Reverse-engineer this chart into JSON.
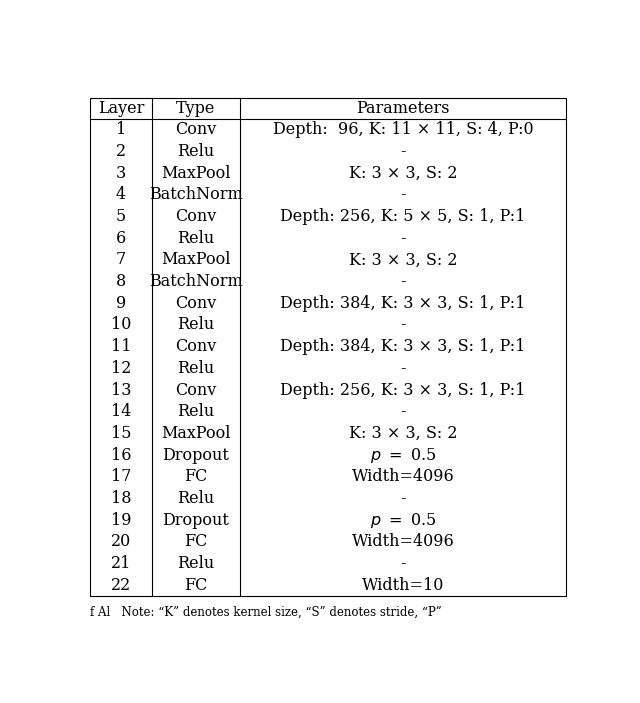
{
  "headers": [
    "Layer",
    "Type",
    "Parameters"
  ],
  "rows": [
    [
      "1",
      "Conv",
      "Depth:  96, K: 11 × 11, S: 4, P:0"
    ],
    [
      "2",
      "Relu",
      "-"
    ],
    [
      "3",
      "MaxPool",
      "K: 3 × 3, S: 2"
    ],
    [
      "4",
      "BatchNorm",
      "-"
    ],
    [
      "5",
      "Conv",
      "Depth: 256, K: 5 × 5, S: 1, P:1"
    ],
    [
      "6",
      "Relu",
      "-"
    ],
    [
      "7",
      "MaxPool",
      "K: 3 × 3, S: 2"
    ],
    [
      "8",
      "BatchNorm",
      "-"
    ],
    [
      "9",
      "Conv",
      "Depth: 384, K: 3 × 3, S: 1, P:1"
    ],
    [
      "10",
      "Relu",
      "-"
    ],
    [
      "11",
      "Conv",
      "Depth: 384, K: 3 × 3, S: 1, P:1"
    ],
    [
      "12",
      "Relu",
      "-"
    ],
    [
      "13",
      "Conv",
      "Depth: 256, K: 3 × 3, S: 1, P:1"
    ],
    [
      "14",
      "Relu",
      "-"
    ],
    [
      "15",
      "MaxPool",
      "K: 3 × 3, S: 2"
    ],
    [
      "16",
      "Dropout",
      "p = 0.5"
    ],
    [
      "17",
      "FC",
      "Width=4096"
    ],
    [
      "18",
      "Relu",
      "-"
    ],
    [
      "19",
      "Dropout",
      "p = 0.5"
    ],
    [
      "20",
      "FC",
      "Width=4096"
    ],
    [
      "21",
      "Relu",
      "-"
    ],
    [
      "22",
      "FC",
      "Width=10"
    ]
  ],
  "italic_rows_col2": [
    15,
    18
  ],
  "fig_width": 6.4,
  "fig_height": 7.03,
  "font_size": 11.5,
  "caption": "f Al   Note: “K” denotes kernel size, “S” denotes stride, “P”"
}
